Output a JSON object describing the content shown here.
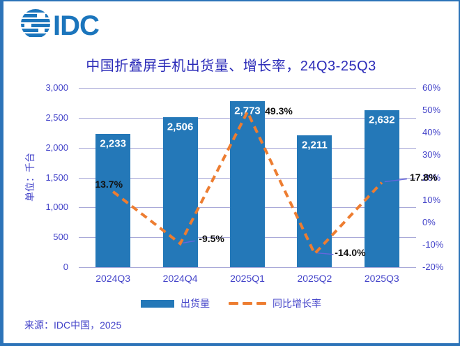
{
  "logo": {
    "text": "IDC"
  },
  "title": "中国折叠屏手机出货量、增长率，24Q3-25Q3",
  "y_axis_label": "单位：千台",
  "source": "来源：IDC中国，2025",
  "legend": {
    "bar_label": "出货量",
    "line_label": "同比增长率"
  },
  "colors": {
    "bar": "#2478B8",
    "line": "#ED7D31",
    "axis_text": "#4343C9",
    "title_text": "#2B2BB8",
    "bar_value_label": "#FFFFFF",
    "line_value_label": "#111111",
    "grid": "#A9A9D8",
    "border": "#2C73B8",
    "logo": "#1B75BC",
    "leader_line": "#6666DD"
  },
  "chart_data": {
    "type": "bar+line combo",
    "title": "中国折叠屏手机出货量、增长率，24Q3-25Q3",
    "categories": [
      "2024Q3",
      "2024Q4",
      "2025Q1",
      "2025Q2",
      "2025Q3"
    ],
    "series": [
      {
        "name": "出货量",
        "type": "bar",
        "axis": "left",
        "values": [
          2233,
          2506,
          2773,
          2211,
          2632
        ],
        "labels": [
          "2,233",
          "2,506",
          "2,773",
          "2,211",
          "2,632"
        ]
      },
      {
        "name": "同比增长率",
        "type": "line",
        "style": "dashed",
        "axis": "right",
        "values": [
          13.7,
          -9.5,
          49.3,
          -14.0,
          17.8
        ],
        "labels": [
          "13.7%",
          "-9.5%",
          "49.3%",
          "-14.0%",
          "17.8%"
        ]
      }
    ],
    "left_axis": {
      "title": "单位：千台",
      "min": 0,
      "max": 3000,
      "step": 500,
      "ticks": [
        "3,000",
        "2,500",
        "2,000",
        "1,500",
        "1,000",
        "500",
        "0"
      ]
    },
    "right_axis": {
      "min": -20,
      "max": 60,
      "step": 10,
      "ticks": [
        "60%",
        "50%",
        "40%",
        "30%",
        "20%",
        "10%",
        "0%",
        "-10%",
        "-20%"
      ]
    },
    "grid": "horizontal",
    "legend_position": "bottom"
  }
}
